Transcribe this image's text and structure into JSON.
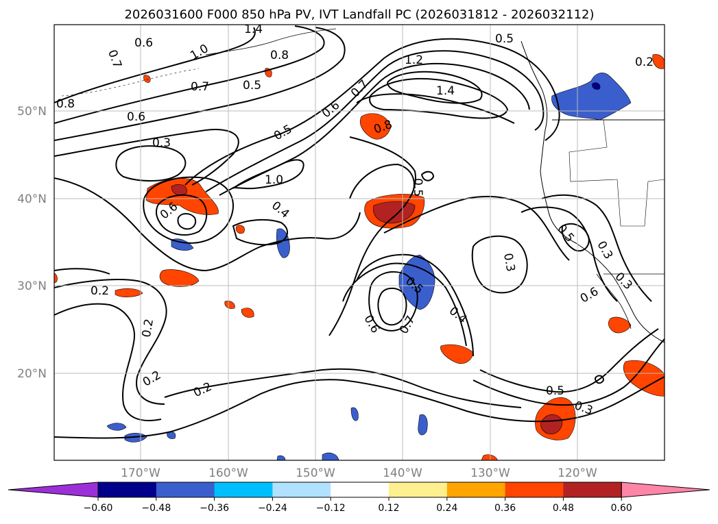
{
  "title": "2026031600 F000 850 hPa PV, IVT Landfall PC (2026031812 - 2026032112)",
  "map": {
    "lat_labels": [
      "50°N",
      "40°N",
      "30°N",
      "20°N"
    ],
    "lon_labels": [
      "170°W",
      "160°W",
      "150°W",
      "140°W",
      "130°W",
      "120°W"
    ]
  },
  "contour_labels": [
    "0.8",
    "0.7",
    "0.6",
    "1.0",
    "0.7",
    "0.5",
    "0.6",
    "0.3",
    "1.4",
    "0.8",
    "0.5",
    "0.2",
    "1.2",
    "0.7",
    "0.6",
    "0.5",
    "1.4",
    "0.8",
    "1.0",
    "0.6",
    "0.4",
    "0.5",
    "0.2",
    "0.2",
    "0.2",
    "0.2",
    "0.5",
    "0.7",
    "0.6",
    "0.4",
    "0.3",
    "0.5",
    "0.3",
    "0.6",
    "0.3",
    "0.5",
    "0.3"
  ],
  "colorbar": {
    "ticks": [
      "−0.60",
      "−0.48",
      "−0.36",
      "−0.24",
      "−0.12",
      "0.12",
      "0.24",
      "0.36",
      "0.48",
      "0.60"
    ],
    "colors": [
      "#9b30d8",
      "#00008b",
      "#3a5fcd",
      "#00bfff",
      "#b0e2ff",
      "#ffffff",
      "#fff08f",
      "#ffa500",
      "#ff4500",
      "#b22222",
      "#ff85a8"
    ]
  }
}
